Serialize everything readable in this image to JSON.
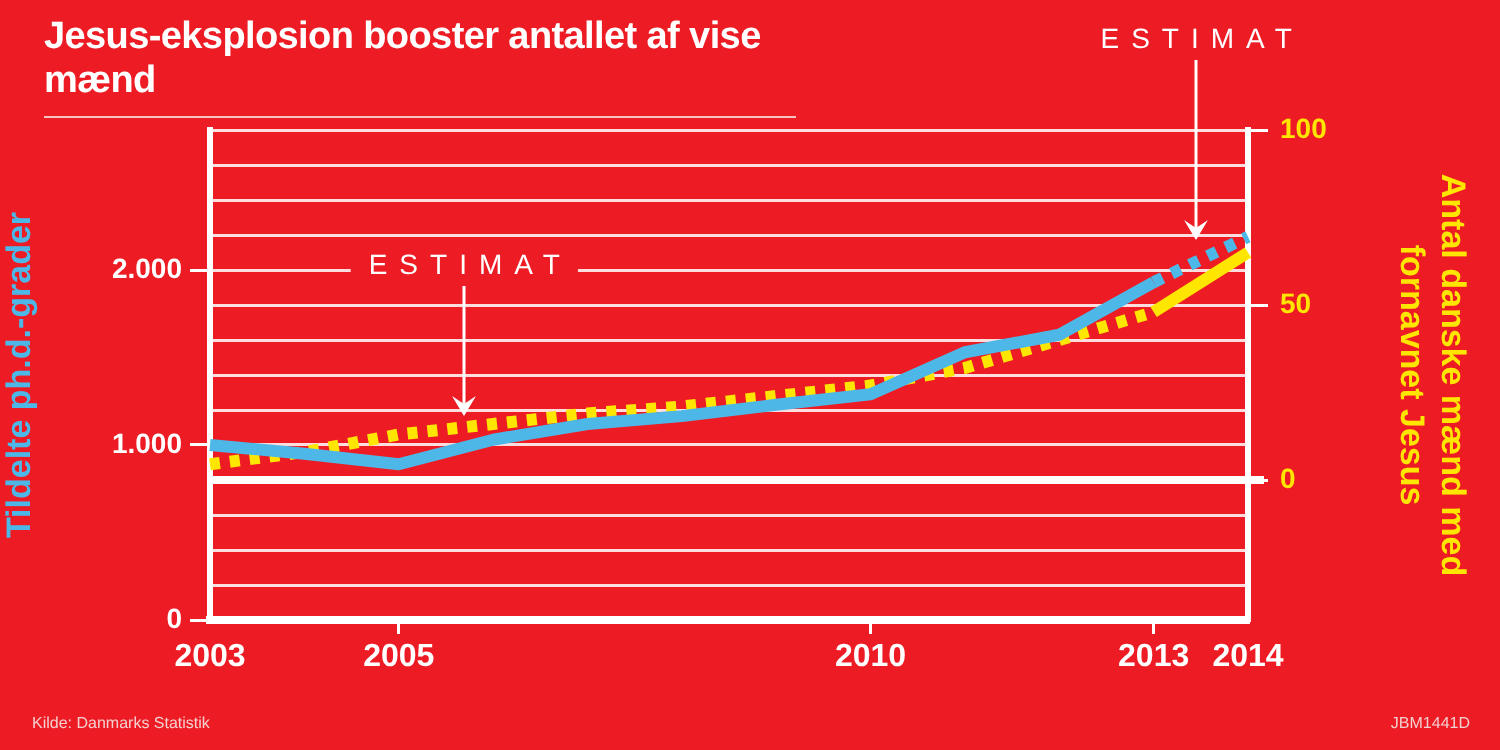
{
  "chart_data": {
    "type": "line",
    "title": "Jesus-eksplosion booster antallet af vise mænd",
    "ylabel": "Tildelte ph.d.-grader",
    "y2label": "Antal danske mænd med fornavnet Jesus",
    "categories": [
      "2003",
      null,
      "2005",
      null,
      null,
      null,
      null,
      "2010",
      null,
      null,
      "2013",
      "2014"
    ],
    "series": [
      {
        "color": "#4db8e8",
        "line_style": "solid",
        "values": [
          1000,
          950,
          890,
          1030,
          1120,
          1165,
          1230,
          1290,
          1530,
          1630,
          1930,
          null
        ]
      },
      {
        "color": "#4db8e8",
        "line_style": "dotted",
        "values": [
          null,
          null,
          null,
          null,
          null,
          null,
          null,
          null,
          null,
          null,
          1930,
          2190
        ]
      },
      {
        "color": "#ffe600",
        "line_style": "dotted",
        "axis": "y2",
        "values": [
          4.5,
          8,
          13,
          16,
          19,
          21,
          24,
          27,
          32,
          40,
          48,
          null
        ]
      },
      {
        "color": "#ffe600",
        "line_style": "solid",
        "axis": "y2",
        "values": [
          null,
          null,
          null,
          null,
          null,
          null,
          null,
          null,
          null,
          null,
          48,
          65
        ]
      }
    ],
    "ylim": [
      0,
      2800
    ],
    "yticks": [
      0,
      {
        "value": 200,
        "label": null
      },
      {
        "value": 400,
        "label": null
      },
      {
        "value": 600,
        "label": null
      },
      {
        "value": 800,
        "label": null
      },
      {
        "value": 1000,
        "label": "1.000"
      },
      {
        "value": 1200,
        "label": null
      },
      {
        "value": 1400,
        "label": null
      },
      {
        "value": 1600,
        "label": null
      },
      {
        "value": 1800,
        "label": null
      },
      {
        "value": 2000,
        "label": "2.000"
      },
      {
        "value": 2200,
        "label": null
      },
      {
        "value": 2400,
        "label": null
      },
      {
        "value": 2600,
        "label": null
      },
      {
        "value": 2800,
        "label": null
      }
    ],
    "y2lim": [
      -40,
      100
    ],
    "y2ticks": [
      0,
      50,
      100
    ],
    "ref_lines": [
      {
        "axis": "y2",
        "value": 0,
        "color": "#ffffff"
      }
    ],
    "annotations": [
      "ESTIMAT",
      "ESTIMAT",
      "Kilde: Danmarks Statistik",
      "JBM1441D"
    ],
    "grid": "y",
    "legend": false,
    "marker": "none"
  }
}
